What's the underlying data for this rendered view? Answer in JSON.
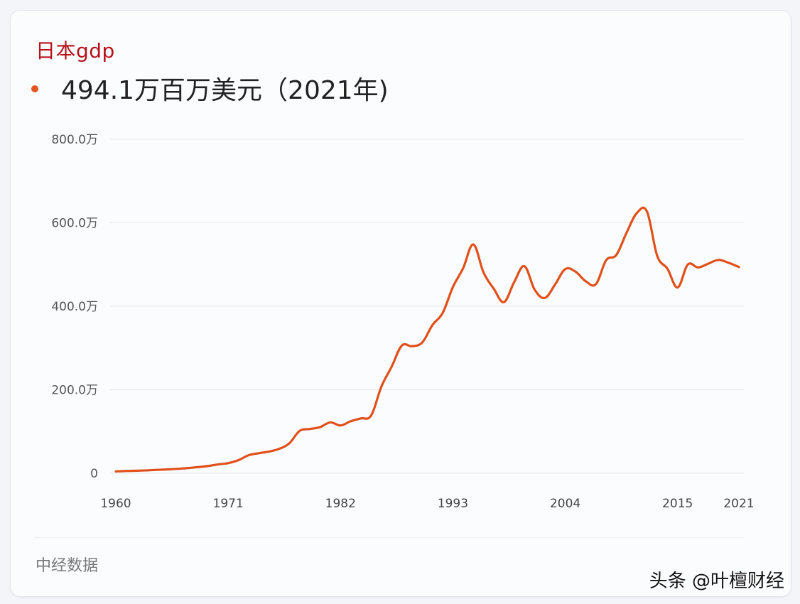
{
  "header": {
    "title": "日本gdp",
    "headline_value": "494.1万百万美元（2021年)"
  },
  "footer": {
    "source": "中经数据",
    "watermark": "头条 @叶檀财经"
  },
  "colors": {
    "title": "#b5121b",
    "line": "#e0501a",
    "bullet": "#e5531e",
    "grid": "#e3e6ec"
  },
  "chart_data": {
    "type": "line",
    "title": "日本gdp",
    "subtitle": "494.1万百万美元（2021年)",
    "xlabel": "",
    "ylabel": "",
    "unit": "万百万美元",
    "ylim": [
      0,
      800
    ],
    "grid": true,
    "legend": null,
    "y_ticks": [
      {
        "value": 0,
        "label": "0"
      },
      {
        "value": 200,
        "label": "200.0万"
      },
      {
        "value": 400,
        "label": "400.0万"
      },
      {
        "value": 600,
        "label": "600.0万"
      },
      {
        "value": 800,
        "label": "800.0万"
      }
    ],
    "x_ticks": [
      "1960",
      "1971",
      "1982",
      "1993",
      "2004",
      "2015",
      "2021"
    ],
    "series": [
      {
        "name": "日本gdp",
        "x": [
          1960,
          1961,
          1962,
          1963,
          1964,
          1965,
          1966,
          1967,
          1968,
          1969,
          1970,
          1971,
          1972,
          1973,
          1974,
          1975,
          1976,
          1977,
          1978,
          1979,
          1980,
          1981,
          1982,
          1983,
          1984,
          1985,
          1986,
          1987,
          1988,
          1989,
          1990,
          1991,
          1992,
          1993,
          1994,
          1995,
          1996,
          1997,
          1998,
          1999,
          2000,
          2001,
          2002,
          2003,
          2004,
          2005,
          2006,
          2007,
          2008,
          2009,
          2010,
          2011,
          2012,
          2013,
          2014,
          2015,
          2016,
          2017,
          2018,
          2019,
          2020,
          2021
        ],
        "values": [
          4.4,
          5.4,
          6.1,
          6.9,
          8.2,
          9.1,
          10.5,
          12.3,
          14.6,
          17.2,
          21.2,
          24.1,
          31.2,
          43.2,
          48.0,
          52.1,
          58.5,
          72.1,
          101.5,
          106.1,
          110.5,
          121.8,
          114.5,
          124.6,
          131.4,
          138.5,
          207.5,
          255.0,
          305.8,
          304.3,
          313.3,
          355.0,
          384.0,
          446.0,
          491.0,
          548.0,
          481.0,
          442.0,
          410.0,
          458.0,
          496.0,
          440.0,
          420.0,
          452.0,
          489.0,
          483.0,
          460.0,
          453.0,
          510.0,
          523.0,
          576.0,
          623.0,
          627.0,
          521.0,
          490.0,
          445.0,
          500.0,
          493.0,
          502.0,
          511.0,
          504.0,
          494.1
        ]
      }
    ]
  }
}
